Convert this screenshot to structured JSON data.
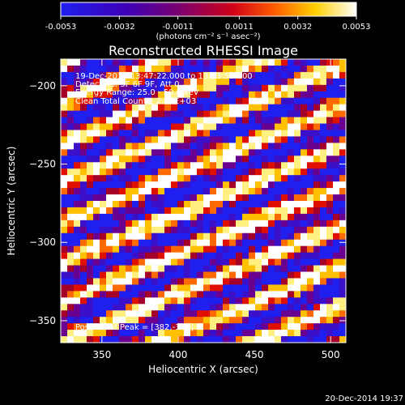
{
  "colorbar": {
    "ticks": [
      "-0.0053",
      "-0.0032",
      "-0.0011",
      "0.0011",
      "0.0032",
      "0.0053"
    ],
    "min": -0.0053,
    "max": 0.0053,
    "units_label": "(photons cm⁻² s⁻¹ asec⁻²)",
    "colors": {
      "lowest": "#1F1FF0",
      "mid_low": "#5B0070",
      "mid": "#B00010",
      "mid_high": "#FF6A00",
      "high": "#FFE000",
      "highest": "#FFFFFF"
    }
  },
  "chart_data": {
    "type": "heatmap",
    "title": "Reconstructed RHESSI Image",
    "xlabel": "Heliocentric X (arcsec)",
    "ylabel": "Heliocentric Y (arcsec)",
    "xlim": [
      323,
      510
    ],
    "ylim": [
      -364,
      -183
    ],
    "x_ticks": [
      350,
      400,
      450,
      500
    ],
    "y_ticks": [
      -200,
      -250,
      -300,
      -350
    ],
    "pattern": "diagonal alternating stripes",
    "annotations": [
      "19-Dec-2014 13:47:22.000 to 13:53:50.000",
      "Detectors: 3F 6F 9F, Att 0",
      "Energy Range: 25.0 - 50.0 keV",
      "Clean     Total Counts: 2.74E+03"
    ],
    "peak_label": "Position of Peak = [382,-354]"
  },
  "footer": {
    "timestamp": "20-Dec-2014 19:37"
  }
}
